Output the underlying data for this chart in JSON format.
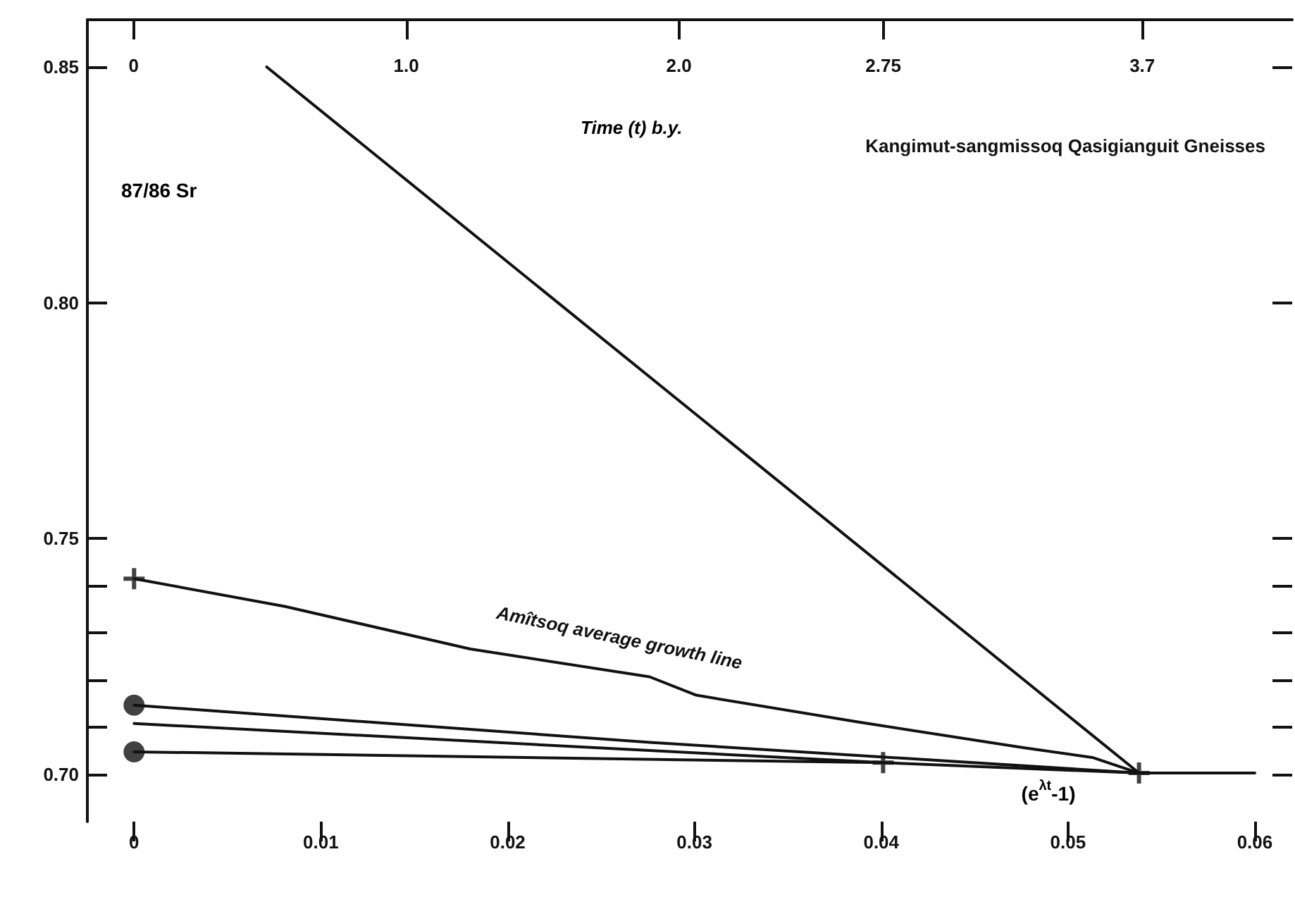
{
  "chart_data": {
    "type": "line",
    "title": "Kangimut-sangmissoq Qasigianguit Gneisses",
    "xlabel": "(e$^{λt}$-1)",
    "ylabel": "87/86 Sr",
    "x2label": "Time (t) b.y.",
    "annotations": [
      "Amîtsoq average growth line"
    ],
    "xlim": [
      -0.0025,
      0.062
    ],
    "xticks": [
      0,
      0.01,
      0.02,
      0.03,
      0.04,
      0.05,
      0.06
    ],
    "x2lim": [
      -0.17,
      4.25
    ],
    "x2ticks": [
      0,
      {
        "value": 1,
        "label": "1.0"
      },
      {
        "value": 2,
        "label": "2.0"
      },
      2.75,
      3.7
    ],
    "ylim": [
      0.69,
      0.86
    ],
    "yticks": [
      {
        "value": 0.7,
        "label": "0.70"
      },
      {
        "value": 0.71,
        "label": null
      },
      {
        "value": 0.72,
        "label": null
      },
      {
        "value": 0.73,
        "label": null
      },
      {
        "value": 0.74,
        "label": null
      },
      0.75,
      {
        "value": 0.8,
        "label": "0.80"
      },
      0.85
    ],
    "grid": false,
    "line_style": "solid",
    "series": [
      {
        "color": "#111111",
        "x": [
          0.0071,
          0.0538
        ],
        "values": [
          0.85,
          0.7003
        ]
      },
      {
        "color": "#111111",
        "x": [
          0,
          0.0081,
          0.018,
          0.0276,
          0.0301,
          0.0388,
          0.0476,
          0.0513,
          0.0538
        ],
        "values": [
          0.7415,
          0.7356,
          0.7266,
          0.7207,
          0.7168,
          0.7111,
          0.7057,
          0.7036,
          0.7003
        ]
      },
      {
        "color": "#111111",
        "x": [
          0,
          0.0276,
          0.0538
        ],
        "values": [
          0.7147,
          0.7068,
          0.7003
        ]
      },
      {
        "color": "#111111",
        "x": [
          0,
          0.0401
        ],
        "values": [
          0.7108,
          0.7025
        ]
      },
      {
        "color": "#111111",
        "x": [
          0,
          0.0401
        ],
        "values": [
          0.7048,
          0.7025
        ]
      },
      {
        "color": "#111111",
        "x": [
          0.0401,
          0.0538,
          0.06
        ],
        "values": [
          0.7025,
          0.7003,
          0.7003
        ]
      },
      {
        "type": "scatter",
        "marker": "cross",
        "color": "#111111",
        "x": [
          0,
          0.0401,
          0.0538
        ],
        "values": [
          0.7415,
          0.7025,
          0.7003
        ]
      },
      {
        "type": "scatter",
        "marker": "circle",
        "color": "#111111",
        "x": [
          0,
          0
        ],
        "values": [
          0.7147,
          0.7048
        ]
      }
    ]
  }
}
